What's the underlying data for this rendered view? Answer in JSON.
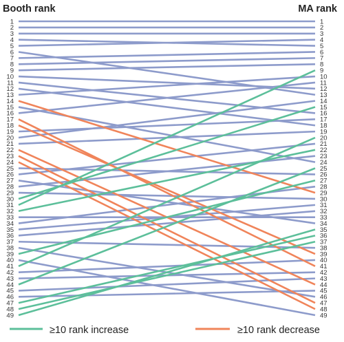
{
  "chart_data": {
    "type": "line",
    "left_axis_title": "Booth rank",
    "right_axis_title": "MA rank",
    "ranks": [
      1,
      2,
      3,
      4,
      5,
      6,
      7,
      8,
      9,
      10,
      11,
      12,
      13,
      14,
      15,
      16,
      17,
      18,
      19,
      20,
      21,
      22,
      23,
      24,
      25,
      26,
      27,
      28,
      29,
      30,
      31,
      32,
      33,
      34,
      35,
      36,
      37,
      38,
      39,
      40,
      41,
      42,
      43,
      44,
      45,
      46,
      47,
      48,
      49
    ],
    "colors": {
      "increase": "#5cbf9a",
      "decrease": "#f0845a",
      "neutral": "#8d9bcb"
    },
    "legend": {
      "placement": "bottom",
      "items": [
        {
          "label": "≥10 rank increase",
          "color": "#5cbf9a"
        },
        {
          "label": "≥10 rank decrease",
          "color": "#f0845a"
        }
      ]
    },
    "connections": [
      {
        "booth": 1,
        "ma": 1
      },
      {
        "booth": 2,
        "ma": 2
      },
      {
        "booth": 3,
        "ma": 3
      },
      {
        "booth": 4,
        "ma": 5
      },
      {
        "booth": 5,
        "ma": 4
      },
      {
        "booth": 6,
        "ma": 13
      },
      {
        "booth": 7,
        "ma": 6
      },
      {
        "booth": 8,
        "ma": 7
      },
      {
        "booth": 9,
        "ma": 8
      },
      {
        "booth": 10,
        "ma": 12
      },
      {
        "booth": 11,
        "ma": 16
      },
      {
        "booth": 12,
        "ma": 18
      },
      {
        "booth": 13,
        "ma": 10
      },
      {
        "booth": 14,
        "ma": 29
      },
      {
        "booth": 15,
        "ma": 24
      },
      {
        "booth": 16,
        "ma": 11
      },
      {
        "booth": 17,
        "ma": 41
      },
      {
        "booth": 18,
        "ma": 39
      },
      {
        "booth": 19,
        "ma": 17
      },
      {
        "booth": 20,
        "ma": 14
      },
      {
        "booth": 21,
        "ma": 19
      },
      {
        "booth": 22,
        "ma": 44
      },
      {
        "booth": 23,
        "ma": 47
      },
      {
        "booth": 24,
        "ma": 48
      },
      {
        "booth": 25,
        "ma": 26
      },
      {
        "booth": 26,
        "ma": 21
      },
      {
        "booth": 27,
        "ma": 34
      },
      {
        "booth": 28,
        "ma": 23
      },
      {
        "booth": 29,
        "ma": 30
      },
      {
        "booth": 30,
        "ma": 15
      },
      {
        "booth": 31,
        "ma": 9
      },
      {
        "booth": 32,
        "ma": 22
      },
      {
        "booth": 33,
        "ma": 33
      },
      {
        "booth": 34,
        "ma": 28
      },
      {
        "booth": 35,
        "ma": 31
      },
      {
        "booth": 36,
        "ma": 32
      },
      {
        "booth": 37,
        "ma": 38
      },
      {
        "booth": 38,
        "ma": 46
      },
      {
        "booth": 39,
        "ma": 27
      },
      {
        "booth": 40,
        "ma": 49
      },
      {
        "booth": 41,
        "ma": 20
      },
      {
        "booth": 42,
        "ma": 40
      },
      {
        "booth": 43,
        "ma": 42
      },
      {
        "booth": 44,
        "ma": 25
      },
      {
        "booth": 45,
        "ma": 43
      },
      {
        "booth": 46,
        "ma": 45
      },
      {
        "booth": 47,
        "ma": 36
      },
      {
        "booth": 48,
        "ma": 37
      },
      {
        "booth": 49,
        "ma": 35
      }
    ]
  }
}
